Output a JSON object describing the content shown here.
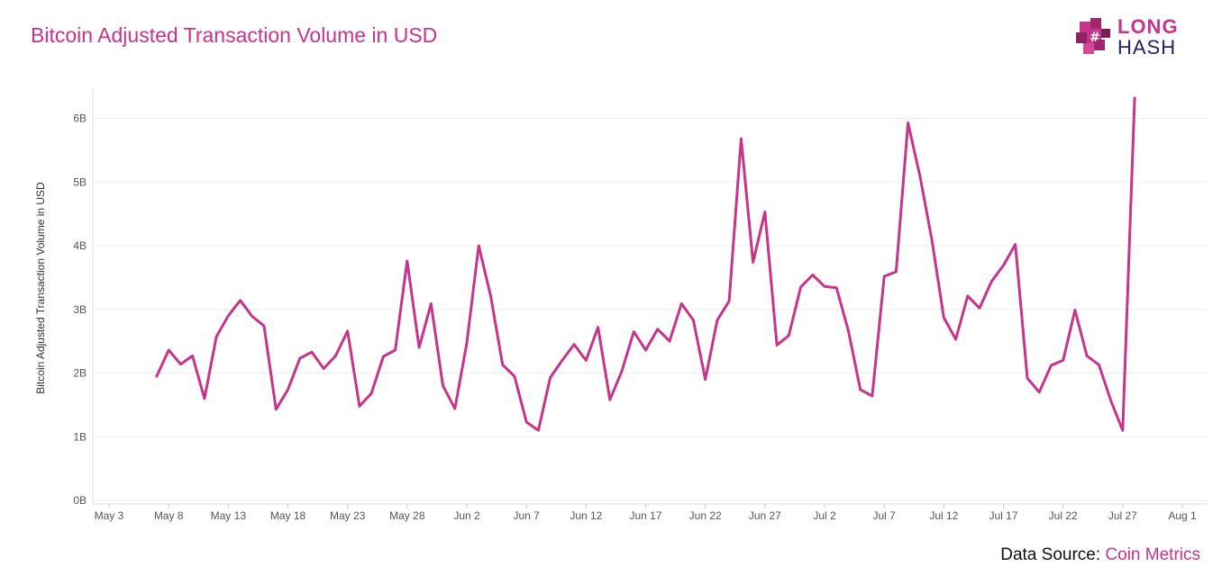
{
  "header": {
    "title": "Bitcoin Adjusted Transaction Volume in USD"
  },
  "logo": {
    "line1": "LONG",
    "line2": "HASH",
    "icon": "cube-hash-icon"
  },
  "footer": {
    "source_label": "Data Source:",
    "source_name": "Coin Metrics"
  },
  "colors": {
    "accent": "#c6348c",
    "line": "#c6348c",
    "grid": "#eeeeee"
  },
  "chart_data": {
    "type": "line",
    "title": "Bitcoin Adjusted Transaction Volume in USD",
    "xlabel": "",
    "ylabel": "Bitcoin Adjusted Transaction Volume in USD",
    "ylim": [
      0,
      6.5
    ],
    "y_ticks": [
      0,
      1,
      2,
      3,
      4,
      5,
      6
    ],
    "y_tick_labels": [
      "0B",
      "1B",
      "2B",
      "3B",
      "4B",
      "5B",
      "6B"
    ],
    "x_ticks": [
      "2019-05-03",
      "2019-05-08",
      "2019-05-13",
      "2019-05-18",
      "2019-05-23",
      "2019-05-28",
      "2019-06-02",
      "2019-06-07",
      "2019-06-12",
      "2019-06-17",
      "2019-06-22",
      "2019-06-27",
      "2019-07-02",
      "2019-07-07",
      "2019-07-12",
      "2019-07-17",
      "2019-07-22",
      "2019-07-27",
      "2019-08-01"
    ],
    "x_tick_labels": [
      "May 3",
      "May 8",
      "May 13",
      "May 18",
      "May 23",
      "May 28",
      "Jun 2",
      "Jun 7",
      "Jun 12",
      "Jun 17",
      "Jun 22",
      "Jun 27",
      "Jul 2",
      "Jul 7",
      "Jul 12",
      "Jul 17",
      "Jul 22",
      "Jul 27",
      "Aug 1"
    ],
    "xlim": [
      "2019-05-03",
      "2019-08-01"
    ],
    "grid": true,
    "series": [
      {
        "start_date": "2019-05-07",
        "values": [
          1.95,
          2.36,
          2.14,
          2.27,
          1.6,
          2.57,
          2.9,
          3.14,
          2.89,
          2.74,
          1.43,
          1.74,
          2.23,
          2.33,
          2.07,
          2.27,
          2.66,
          1.48,
          1.68,
          2.26,
          2.36,
          3.76,
          2.4,
          3.09,
          1.8,
          1.44,
          2.47,
          4.0,
          3.21,
          2.13,
          1.95,
          1.23,
          1.1,
          1.93,
          2.2,
          2.45,
          2.2,
          2.72,
          1.58,
          2.03,
          2.65,
          2.36,
          2.69,
          2.5,
          3.09,
          2.83,
          1.9,
          2.83,
          3.13,
          5.68,
          3.74,
          4.53,
          2.44,
          2.59,
          3.35,
          3.54,
          3.36,
          3.34,
          2.66,
          1.74,
          1.64,
          3.52,
          3.59,
          5.93,
          5.09,
          4.09,
          2.87,
          2.53,
          3.21,
          3.02,
          3.44,
          3.69,
          4.02,
          1.92,
          1.7,
          2.12,
          2.2,
          2.99,
          2.27,
          2.13,
          1.57,
          1.1,
          6.32
        ]
      }
    ]
  }
}
